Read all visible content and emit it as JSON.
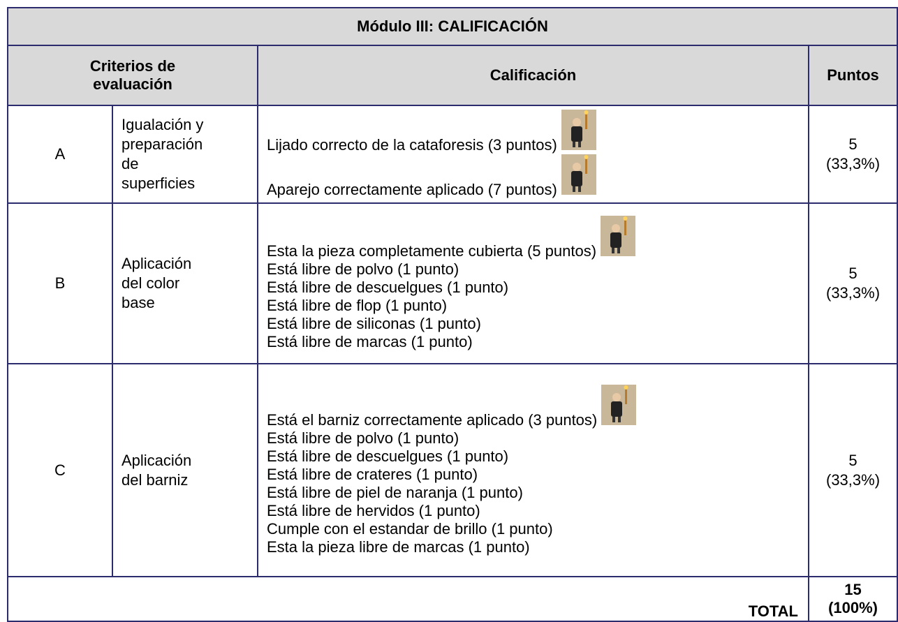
{
  "title": "Módulo III: CALIFICACIÓN",
  "header": {
    "criteria": [
      "Criterios de",
      "evaluación"
    ],
    "grading": "Calificación",
    "points": "Puntos"
  },
  "rows": [
    {
      "letter": "A",
      "criterion": [
        "Igualación y",
        "preparación",
        "de",
        "superficies"
      ],
      "items": [
        "Lijado correcto de la cataforesis (3 puntos)",
        "Aparejo correctamente aplicado (7 puntos)"
      ],
      "points": 5,
      "share": "(33,3%)"
    },
    {
      "letter": "B",
      "criterion": [
        "Aplicación",
        "del color",
        "base"
      ],
      "items": [
        "Esta la pieza completamente cubierta (5 puntos)",
        "Está libre de polvo (1 punto)",
        "Está libre de descuelgues (1 punto)",
        "Está libre de flop (1 punto)",
        "Está libre de siliconas (1 punto)",
        "Está libre de marcas (1 punto)"
      ],
      "points": 5,
      "share": "(33,3%)"
    },
    {
      "letter": "C",
      "criterion": [
        "Aplicación",
        "del barniz"
      ],
      "items": [
        "Está el barniz correctamente aplicado (3 puntos)",
        "Está libre de polvo (1 punto)",
        "Está libre de descuelgues (1 punto)",
        "Está libre de crateres (1 punto)",
        "Está libre de piel de naranja (1 punto)",
        "Está libre de hervidos (1 punto)",
        "Cumple con el estandar de brillo (1 punto)",
        "Esta la pieza libre de marcas (1 punto)"
      ],
      "points": 5,
      "share": "(33,3%)"
    }
  ],
  "total": {
    "label": "TOTAL",
    "points": 15,
    "share": "(100%)"
  }
}
